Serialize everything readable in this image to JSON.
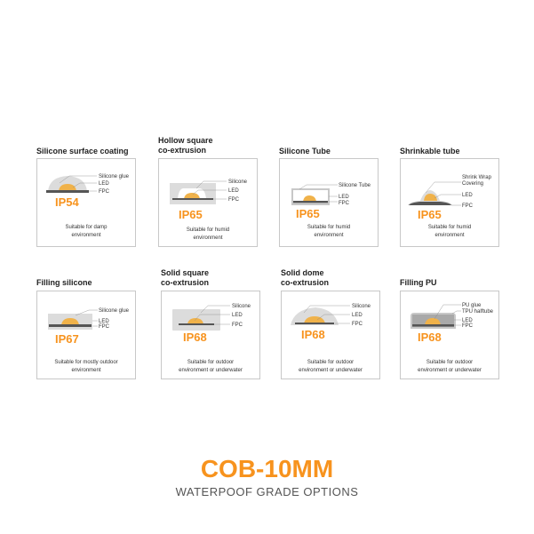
{
  "colors": {
    "accent": "#f7931e",
    "led": "#f0b24a",
    "fpc": "#555555",
    "silicone": "#dcdcdc"
  },
  "options": [
    {
      "title": "Silicone surface coating",
      "labels": [
        "Silicone glue",
        "LED",
        "FPC"
      ],
      "grade": "IP54",
      "desc": "Suitable for damp\nenvironment"
    },
    {
      "title": "Hollow square\nco-extrusion",
      "labels": [
        "Silicone",
        "LED",
        "FPC"
      ],
      "grade": "IP65",
      "desc": "Suitable for humid\nenvironment"
    },
    {
      "title": "Silicone Tube",
      "labels": [
        "Silicone Tube",
        "LED",
        "FPC"
      ],
      "grade": "IP65",
      "desc": "Suitable for humid\nenvironment"
    },
    {
      "title": "Shrinkable tube",
      "labels": [
        "Shrink Wrap",
        "Covering",
        "LED",
        "FPC"
      ],
      "grade": "IP65",
      "desc": "Suitable for humid\nenvironment"
    },
    {
      "title": "Filling silicone",
      "labels": [
        "Silicone glue",
        "LED",
        "FPC"
      ],
      "grade": "IP67",
      "desc": "Suitable for mostly outdoor\nenvironment"
    },
    {
      "title": "Solid square\nco-extrusion",
      "labels": [
        "Silicone",
        "LED",
        "FPC"
      ],
      "grade": "IP68",
      "desc": "Suitable for outdoor\nenvironment or underwater"
    },
    {
      "title": "Solid dome\nco-extrusion",
      "labels": [
        "Silicone",
        "LED",
        "FPC"
      ],
      "grade": "IP68",
      "desc": "Suitable for outdoor\nenvironment or underwater"
    },
    {
      "title": "Filling PU",
      "labels": [
        "PU glue",
        "TPU halftube",
        "LED",
        "FPC"
      ],
      "grade": "IP68",
      "desc": "Suitable for outdoor\nenvironment or underwater"
    }
  ],
  "footer": {
    "title": "COB-10MM",
    "subtitle": "WATERPOOF GRADE OPTIONS"
  }
}
